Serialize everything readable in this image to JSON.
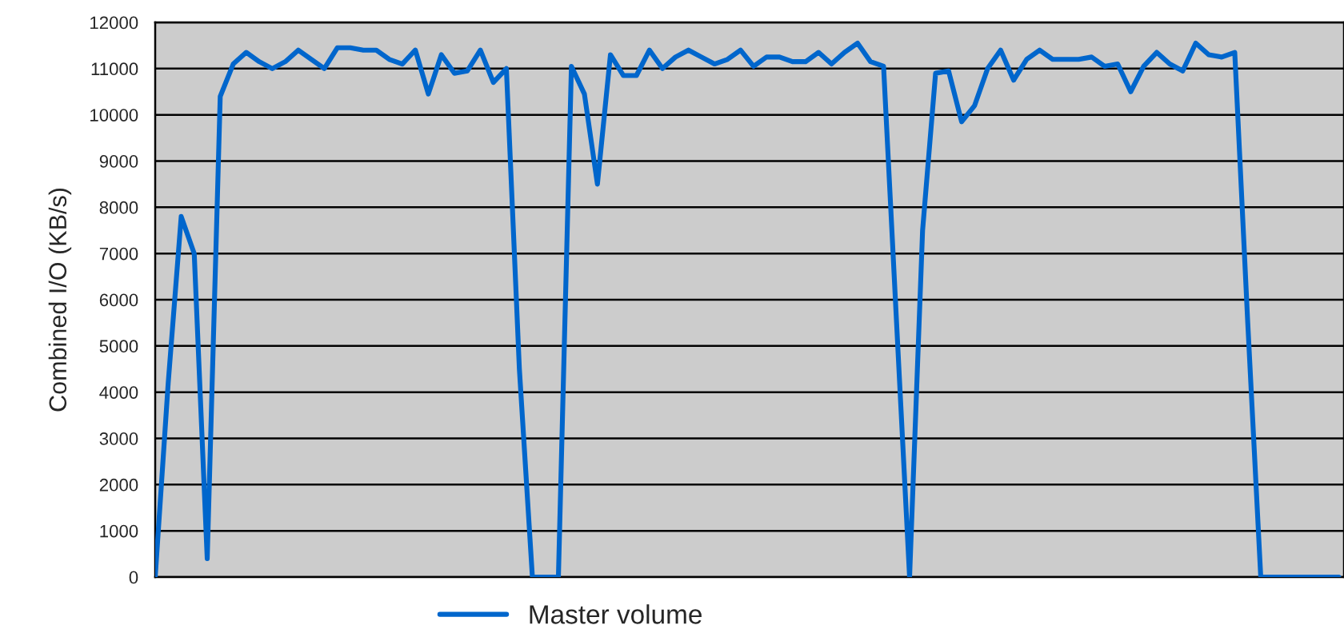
{
  "chart_data": {
    "type": "line",
    "ylabel": "Combined I/O (KB/s)",
    "categories": [
      null,
      null,
      null,
      null,
      null,
      null,
      null,
      null,
      null,
      null,
      null,
      null,
      null,
      null,
      null,
      null,
      null,
      null,
      null,
      null,
      null,
      null,
      null,
      null,
      null,
      null,
      null,
      null,
      null,
      null,
      null,
      null,
      null,
      null,
      null,
      null,
      null,
      null,
      null,
      null,
      null,
      null,
      null,
      null,
      null,
      null,
      null,
      null,
      null,
      null,
      null,
      null,
      null,
      null,
      null,
      null,
      null,
      null,
      null,
      null,
      null,
      null,
      null,
      null,
      null,
      null,
      null,
      null,
      null,
      null,
      null,
      null,
      null,
      null,
      null,
      null,
      null,
      null,
      null,
      null,
      null,
      null,
      null,
      null,
      null,
      null,
      null,
      null,
      null,
      null,
      null,
      null
    ],
    "series": [
      {
        "name": "Master volume",
        "color": "#0066cc",
        "values": [
          0,
          4200,
          7800,
          7000,
          400,
          10400,
          11100,
          11350,
          11150,
          11000,
          11150,
          11400,
          11200,
          11000,
          11450,
          11450,
          11400,
          11400,
          11200,
          11100,
          11400,
          10450,
          11300,
          10900,
          10950,
          11400,
          10700,
          11000,
          4500,
          0,
          0,
          0,
          11050,
          10450,
          8500,
          11300,
          10850,
          10850,
          11400,
          11000,
          11250,
          11400,
          11250,
          11100,
          11200,
          11400,
          11050,
          11250,
          11250,
          11150,
          11150,
          11350,
          11100,
          11350,
          11550,
          11150,
          11050,
          5500,
          0,
          7500,
          10900,
          10950,
          9850,
          10200,
          11000,
          11400,
          10750,
          11200,
          11400,
          11200,
          11200,
          11200,
          11250,
          11050,
          11100,
          10500,
          11050,
          11350,
          11100,
          10950,
          11550,
          11300,
          11250,
          11350,
          5500,
          0,
          0,
          0,
          0,
          0,
          0,
          0
        ]
      }
    ],
    "ylim": [
      0,
      12000
    ],
    "yticks": [
      0,
      1000,
      2000,
      3000,
      4000,
      5000,
      6000,
      7000,
      8000,
      9000,
      10000,
      11000,
      12000
    ],
    "grid": "y",
    "legend": "bottom",
    "tick_labels": "y"
  }
}
